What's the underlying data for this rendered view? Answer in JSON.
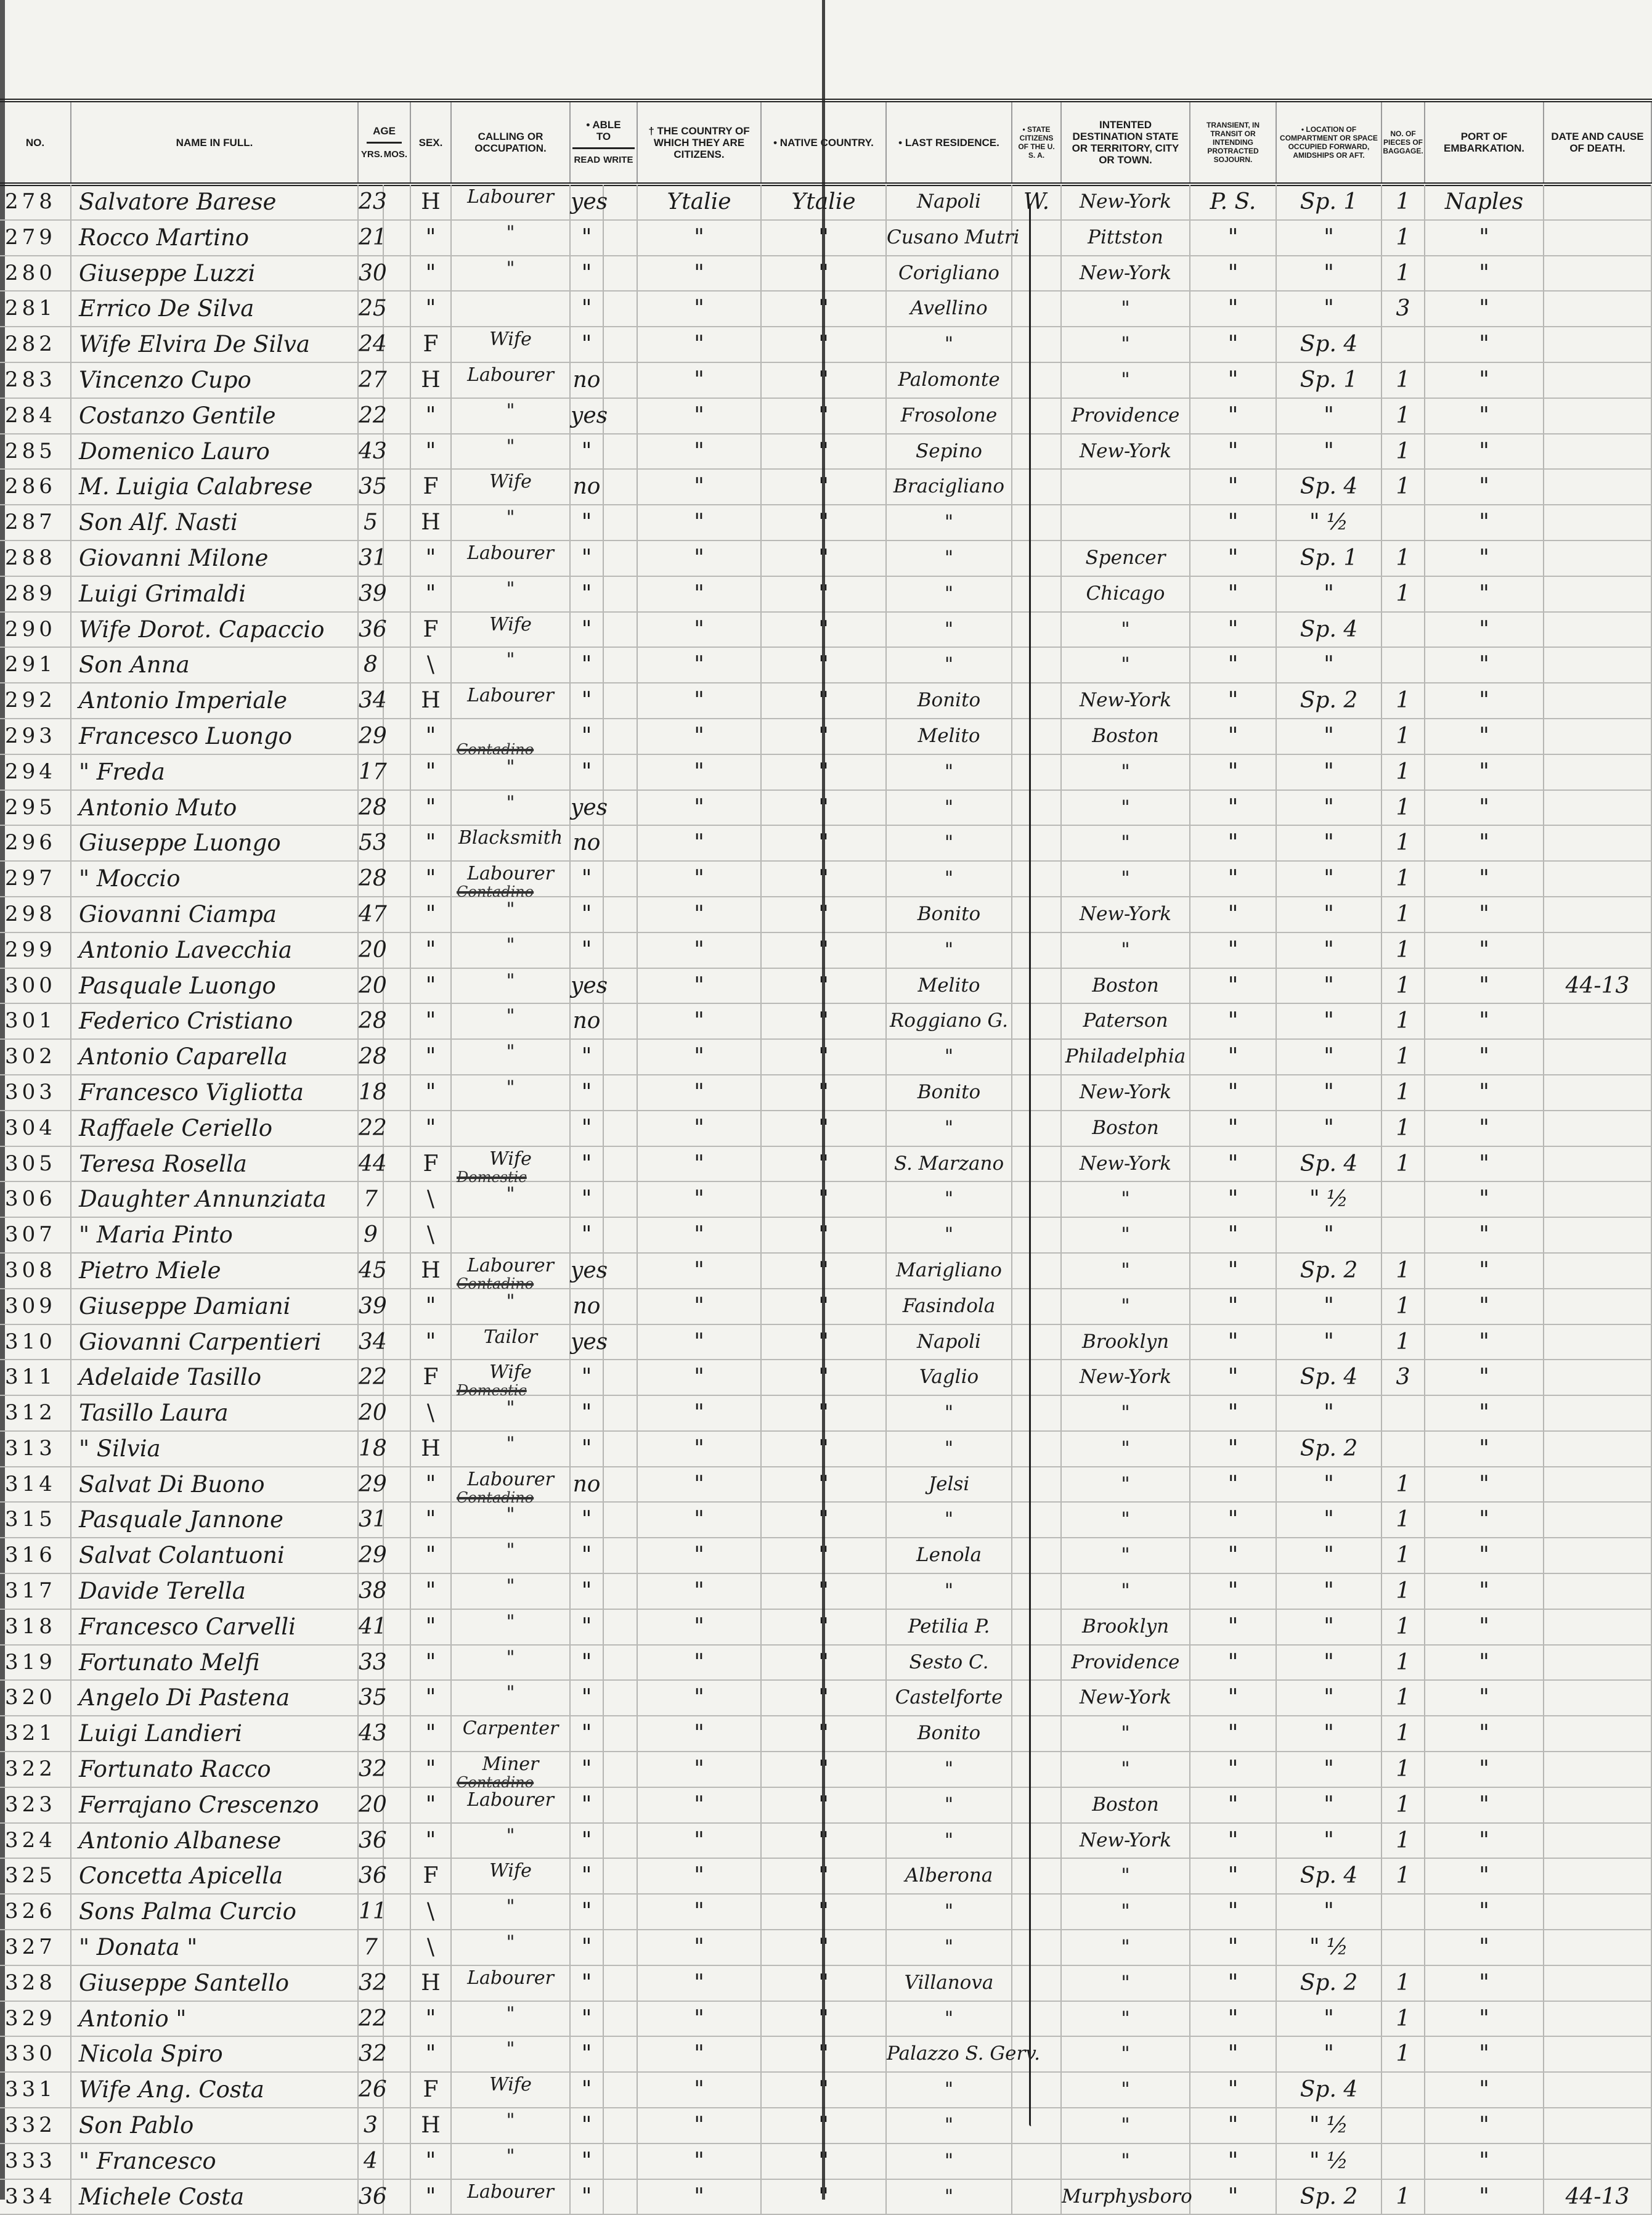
{
  "header": {
    "columns": [
      {
        "key": "no",
        "label": "No."
      },
      {
        "key": "name",
        "label": "Name in Full."
      },
      {
        "key": "yrs",
        "label": "Yrs."
      },
      {
        "key": "mos",
        "label": "Mos."
      },
      {
        "key": "sex",
        "label": "Sex."
      },
      {
        "key": "calling",
        "label": "Calling or Occupation."
      },
      {
        "key": "read",
        "label": "Read"
      },
      {
        "key": "write",
        "label": "Write"
      },
      {
        "key": "country",
        "label": "† The Country of which they are Citizens."
      },
      {
        "key": "native",
        "label": "• Native Country."
      },
      {
        "key": "last",
        "label": "• Last Residence."
      },
      {
        "key": "state",
        "label": "• State Citizens of the U. S. A."
      },
      {
        "key": "dest",
        "label": "Intented Destination State or Territory, City or Town."
      },
      {
        "key": "transient",
        "label": "Transient, in Transit or Intending Protracted Sojourn."
      },
      {
        "key": "location",
        "label": "• Location of Compartment or Space Occupied Forward, Amidships or Aft."
      },
      {
        "key": "pieces",
        "label": "No. of Pieces of Baggage."
      },
      {
        "key": "port",
        "label": "Port of Embarkation."
      },
      {
        "key": "death",
        "label": "Date and Cause of Death."
      }
    ],
    "age_label": "Age",
    "able_label": "• Able to"
  },
  "row_fields": [
    "no",
    "name",
    "yrs",
    "sex",
    "calling",
    "calling_struck",
    "read",
    "country",
    "native",
    "last",
    "state",
    "dest",
    "transient",
    "location",
    "pieces",
    "port",
    "death"
  ],
  "rows": [
    [
      "278",
      "Salvatore Barese",
      "23",
      "H",
      "Labourer",
      "",
      "yes",
      "Ytalie",
      "Ytalie",
      "Napoli",
      "W.",
      "New-York",
      "P. S.",
      "Sp. 1",
      "1",
      "Naples",
      ""
    ],
    [
      "279",
      "Rocco Martino",
      "21",
      "\"",
      "\"",
      "",
      "\"",
      "\"",
      "\"",
      "Cusano Mutri",
      "",
      "Pittston",
      "\"",
      "\"",
      "1",
      "\"",
      ""
    ],
    [
      "280",
      "Giuseppe Luzzi",
      "30",
      "\"",
      "\"",
      "",
      "\"",
      "\"",
      "\"",
      "Corigliano",
      "",
      "New-York",
      "\"",
      "\"",
      "1",
      "\"",
      ""
    ],
    [
      "281",
      "Errico De Silva",
      "25",
      "\"",
      "",
      "",
      "\"",
      "\"",
      "\"",
      "Avellino",
      "",
      "\"",
      "\"",
      "\"",
      "3",
      "\"",
      ""
    ],
    [
      "282",
      "Wife Elvira De Silva",
      "24",
      "F",
      "Wife",
      "",
      "\"",
      "\"",
      "\"",
      "\"",
      "",
      "\"",
      "\"",
      "Sp. 4",
      "",
      "\"",
      ""
    ],
    [
      "283",
      "Vincenzo Cupo",
      "27",
      "H",
      "Labourer",
      "",
      "no",
      "\"",
      "\"",
      "Palomonte",
      "",
      "\"",
      "\"",
      "Sp. 1",
      "1",
      "\"",
      ""
    ],
    [
      "284",
      "Costanzo Gentile",
      "22",
      "\"",
      "\"",
      "",
      "yes",
      "\"",
      "\"",
      "Frosolone",
      "",
      "Providence",
      "\"",
      "\"",
      "1",
      "\"",
      ""
    ],
    [
      "285",
      "Domenico Lauro",
      "43",
      "\"",
      "\"",
      "",
      "\"",
      "\"",
      "\"",
      "Sepino",
      "",
      "New-York",
      "\"",
      "\"",
      "1",
      "\"",
      ""
    ],
    [
      "286",
      "M. Luigia Calabrese",
      "35",
      "F",
      "Wife",
      "",
      "no",
      "\"",
      "\"",
      "Bracigliano",
      "",
      "",
      "\"",
      "Sp. 4",
      "1",
      "\"",
      ""
    ],
    [
      "287",
      "Son Alf. Nasti",
      "5",
      "H",
      "\"",
      "",
      "\"",
      "\"",
      "\"",
      "\"",
      "",
      "",
      "\"",
      "\" ½",
      "",
      "\"",
      ""
    ],
    [
      "288",
      "Giovanni Milone",
      "31",
      "\"",
      "Labourer",
      "",
      "\"",
      "\"",
      "\"",
      "\"",
      "",
      "Spencer",
      "\"",
      "Sp. 1",
      "1",
      "\"",
      ""
    ],
    [
      "289",
      "Luigi Grimaldi",
      "39",
      "\"",
      "\"",
      "",
      "\"",
      "\"",
      "\"",
      "\"",
      "",
      "Chicago",
      "\"",
      "\"",
      "1",
      "\"",
      ""
    ],
    [
      "290",
      "Wife Dorot. Capaccio",
      "36",
      "F",
      "Wife",
      "",
      "\"",
      "\"",
      "\"",
      "\"",
      "",
      "\"",
      "\"",
      "Sp. 4",
      "",
      "\"",
      ""
    ],
    [
      "291",
      "Son Anna",
      "8",
      "\\",
      "\"",
      "",
      "\"",
      "\"",
      "\"",
      "\"",
      "",
      "\"",
      "\"",
      "\"",
      "",
      "\"",
      ""
    ],
    [
      "292",
      "Antonio Imperiale",
      "34",
      "H",
      "Labourer",
      "",
      "\"",
      "\"",
      "\"",
      "Bonito",
      "",
      "New-York",
      "\"",
      "Sp. 2",
      "1",
      "\"",
      ""
    ],
    [
      "293",
      "Francesco Luongo",
      "29",
      "\"",
      "",
      "Contadino",
      "\"",
      "\"",
      "\"",
      "Melito",
      "",
      "Boston",
      "\"",
      "\"",
      "1",
      "\"",
      ""
    ],
    [
      "294",
      "\" Freda",
      "17",
      "\"",
      "\"",
      "",
      "\"",
      "\"",
      "\"",
      "\"",
      "",
      "\"",
      "\"",
      "\"",
      "1",
      "\"",
      ""
    ],
    [
      "295",
      "Antonio Muto",
      "28",
      "\"",
      "\"",
      "",
      "yes",
      "\"",
      "\"",
      "\"",
      "",
      "\"",
      "\"",
      "\"",
      "1",
      "\"",
      ""
    ],
    [
      "296",
      "Giuseppe Luongo",
      "53",
      "\"",
      "Blacksmith",
      "",
      "no",
      "\"",
      "\"",
      "\"",
      "",
      "\"",
      "\"",
      "\"",
      "1",
      "\"",
      ""
    ],
    [
      "297",
      "\" Moccio",
      "28",
      "\"",
      "Labourer",
      "Contadino",
      "\"",
      "\"",
      "\"",
      "\"",
      "",
      "\"",
      "\"",
      "\"",
      "1",
      "\"",
      ""
    ],
    [
      "298",
      "Giovanni Ciampa",
      "47",
      "\"",
      "\"",
      "",
      "\"",
      "\"",
      "\"",
      "Bonito",
      "",
      "New-York",
      "\"",
      "\"",
      "1",
      "\"",
      ""
    ],
    [
      "299",
      "Antonio Lavecchia",
      "20",
      "\"",
      "\"",
      "",
      "\"",
      "\"",
      "\"",
      "\"",
      "",
      "\"",
      "\"",
      "\"",
      "1",
      "\"",
      ""
    ],
    [
      "300",
      "Pasquale Luongo",
      "20",
      "\"",
      "\"",
      "",
      "yes",
      "\"",
      "\"",
      "Melito",
      "",
      "Boston",
      "\"",
      "\"",
      "1",
      "\"",
      "44-13"
    ],
    [
      "301",
      "Federico Cristiano",
      "28",
      "\"",
      "\"",
      "",
      "no",
      "\"",
      "\"",
      "Roggiano G.",
      "",
      "Paterson",
      "\"",
      "\"",
      "1",
      "\"",
      ""
    ],
    [
      "302",
      "Antonio Caparella",
      "28",
      "\"",
      "\"",
      "",
      "\"",
      "\"",
      "\"",
      "\"",
      "",
      "Philadelphia",
      "\"",
      "\"",
      "1",
      "\"",
      ""
    ],
    [
      "303",
      "Francesco Vigliotta",
      "18",
      "\"",
      "\"",
      "",
      "\"",
      "\"",
      "\"",
      "Bonito",
      "",
      "New-York",
      "\"",
      "\"",
      "1",
      "\"",
      ""
    ],
    [
      "304",
      "Raffaele Ceriello",
      "22",
      "\"",
      "",
      "",
      "\"",
      "\"",
      "\"",
      "\"",
      "",
      "Boston",
      "\"",
      "\"",
      "1",
      "\"",
      ""
    ],
    [
      "305",
      "Teresa Rosella",
      "44",
      "F",
      "Wife",
      "Domestic",
      "\"",
      "\"",
      "\"",
      "S. Marzano",
      "",
      "New-York",
      "\"",
      "Sp. 4",
      "1",
      "\"",
      ""
    ],
    [
      "306",
      "Daughter Annunziata",
      "7",
      "\\",
      "\"",
      "",
      "\"",
      "\"",
      "\"",
      "\"",
      "",
      "\"",
      "\"",
      "\" ½",
      "",
      "\"",
      ""
    ],
    [
      "307",
      "\" Maria Pinto",
      "9",
      "\\",
      "",
      "",
      "\"",
      "\"",
      "\"",
      "\"",
      "",
      "\"",
      "\"",
      "\"",
      "",
      "\"",
      ""
    ],
    [
      "308",
      "Pietro Miele",
      "45",
      "H",
      "Labourer",
      "Contadino",
      "yes",
      "\"",
      "\"",
      "Marigliano",
      "",
      "\"",
      "\"",
      "Sp. 2",
      "1",
      "\"",
      ""
    ],
    [
      "309",
      "Giuseppe Damiani",
      "39",
      "\"",
      "\"",
      "",
      "no",
      "\"",
      "\"",
      "Fasindola",
      "",
      "\"",
      "\"",
      "\"",
      "1",
      "\"",
      ""
    ],
    [
      "310",
      "Giovanni Carpentieri",
      "34",
      "\"",
      "Tailor",
      "",
      "yes",
      "\"",
      "\"",
      "Napoli",
      "",
      "Brooklyn",
      "\"",
      "\"",
      "1",
      "\"",
      ""
    ],
    [
      "311",
      "Adelaide Tasillo",
      "22",
      "F",
      "Wife",
      "Domestic",
      "\"",
      "\"",
      "\"",
      "Vaglio",
      "",
      "New-York",
      "\"",
      "Sp. 4",
      "3",
      "\"",
      ""
    ],
    [
      "312",
      "Tasillo Laura",
      "20",
      "\\",
      "\"",
      "",
      "\"",
      "\"",
      "\"",
      "\"",
      "",
      "\"",
      "\"",
      "\"",
      "",
      "\"",
      ""
    ],
    [
      "313",
      "\" Silvia",
      "18",
      "H",
      "\"",
      "",
      "\"",
      "\"",
      "\"",
      "\"",
      "",
      "\"",
      "\"",
      "Sp. 2",
      "",
      "\"",
      ""
    ],
    [
      "314",
      "Salvat Di Buono",
      "29",
      "\"",
      "Labourer",
      "Contadino",
      "no",
      "\"",
      "\"",
      "Jelsi",
      "",
      "\"",
      "\"",
      "\"",
      "1",
      "\"",
      ""
    ],
    [
      "315",
      "Pasquale Jannone",
      "31",
      "\"",
      "\"",
      "",
      "\"",
      "\"",
      "\"",
      "\"",
      "",
      "\"",
      "\"",
      "\"",
      "1",
      "\"",
      ""
    ],
    [
      "316",
      "Salvat Colantuoni",
      "29",
      "\"",
      "\"",
      "",
      "\"",
      "\"",
      "\"",
      "Lenola",
      "",
      "\"",
      "\"",
      "\"",
      "1",
      "\"",
      ""
    ],
    [
      "317",
      "Davide Terella",
      "38",
      "\"",
      "\"",
      "",
      "\"",
      "\"",
      "\"",
      "\"",
      "",
      "\"",
      "\"",
      "\"",
      "1",
      "\"",
      ""
    ],
    [
      "318",
      "Francesco Carvelli",
      "41",
      "\"",
      "\"",
      "",
      "\"",
      "\"",
      "\"",
      "Petilia P.",
      "",
      "Brooklyn",
      "\"",
      "\"",
      "1",
      "\"",
      ""
    ],
    [
      "319",
      "Fortunato Melfi",
      "33",
      "\"",
      "\"",
      "",
      "\"",
      "\"",
      "\"",
      "Sesto C.",
      "",
      "Providence",
      "\"",
      "\"",
      "1",
      "\"",
      ""
    ],
    [
      "320",
      "Angelo Di Pastena",
      "35",
      "\"",
      "\"",
      "",
      "\"",
      "\"",
      "\"",
      "Castelforte",
      "",
      "New-York",
      "\"",
      "\"",
      "1",
      "\"",
      ""
    ],
    [
      "321",
      "Luigi Landieri",
      "43",
      "\"",
      "Carpenter",
      "",
      "\"",
      "\"",
      "\"",
      "Bonito",
      "",
      "\"",
      "\"",
      "\"",
      "1",
      "\"",
      ""
    ],
    [
      "322",
      "Fortunato Racco",
      "32",
      "\"",
      "Miner",
      "Contadino",
      "\"",
      "\"",
      "\"",
      "\"",
      "",
      "\"",
      "\"",
      "\"",
      "1",
      "\"",
      ""
    ],
    [
      "323",
      "Ferrajano Crescenzo",
      "20",
      "\"",
      "Labourer",
      "",
      "\"",
      "\"",
      "\"",
      "\"",
      "",
      "Boston",
      "\"",
      "\"",
      "1",
      "\"",
      ""
    ],
    [
      "324",
      "Antonio Albanese",
      "36",
      "\"",
      "\"",
      "",
      "\"",
      "\"",
      "\"",
      "\"",
      "",
      "New-York",
      "\"",
      "\"",
      "1",
      "\"",
      ""
    ],
    [
      "325",
      "Concetta Apicella",
      "36",
      "F",
      "Wife",
      "",
      "\"",
      "\"",
      "\"",
      "Alberona",
      "",
      "\"",
      "\"",
      "Sp. 4",
      "1",
      "\"",
      ""
    ],
    [
      "326",
      "Sons Palma Curcio",
      "11",
      "\\",
      "\"",
      "",
      "\"",
      "\"",
      "\"",
      "\"",
      "",
      "\"",
      "\"",
      "\"",
      "",
      "\"",
      ""
    ],
    [
      "327",
      "\" Donata \"",
      "7",
      "\\",
      "\"",
      "",
      "\"",
      "\"",
      "\"",
      "\"",
      "",
      "\"",
      "\"",
      "\" ½",
      "",
      "\"",
      ""
    ],
    [
      "328",
      "Giuseppe Santello",
      "32",
      "H",
      "Labourer",
      "",
      "\"",
      "\"",
      "\"",
      "Villanova",
      "",
      "\"",
      "\"",
      "Sp. 2",
      "1",
      "\"",
      ""
    ],
    [
      "329",
      "Antonio \"",
      "22",
      "\"",
      "\"",
      "",
      "\"",
      "\"",
      "\"",
      "\"",
      "",
      "\"",
      "\"",
      "\"",
      "1",
      "\"",
      ""
    ],
    [
      "330",
      "Nicola Spiro",
      "32",
      "\"",
      "\"",
      "",
      "\"",
      "\"",
      "\"",
      "Palazzo S. Gerv.",
      "",
      "\"",
      "\"",
      "\"",
      "1",
      "\"",
      ""
    ],
    [
      "331",
      "Wife Ang. Costa",
      "26",
      "F",
      "Wife",
      "",
      "\"",
      "\"",
      "\"",
      "\"",
      "",
      "\"",
      "\"",
      "Sp. 4",
      "",
      "\"",
      ""
    ],
    [
      "332",
      "Son Pablo",
      "3",
      "H",
      "\"",
      "",
      "\"",
      "\"",
      "\"",
      "\"",
      "",
      "\"",
      "\"",
      "\" ½",
      "",
      "\"",
      ""
    ],
    [
      "333",
      "\" Francesco",
      "4",
      "\"",
      "\"",
      "",
      "\"",
      "\"",
      "\"",
      "\"",
      "",
      "\"",
      "\"",
      "\" ½",
      "",
      "\"",
      ""
    ],
    [
      "334",
      "Michele Costa",
      "36",
      "\"",
      "Labourer",
      "",
      "\"",
      "\"",
      "\"",
      "\"",
      "",
      "Murphysboro",
      "\"",
      "Sp. 2",
      "1",
      "\"",
      "44-13"
    ]
  ]
}
